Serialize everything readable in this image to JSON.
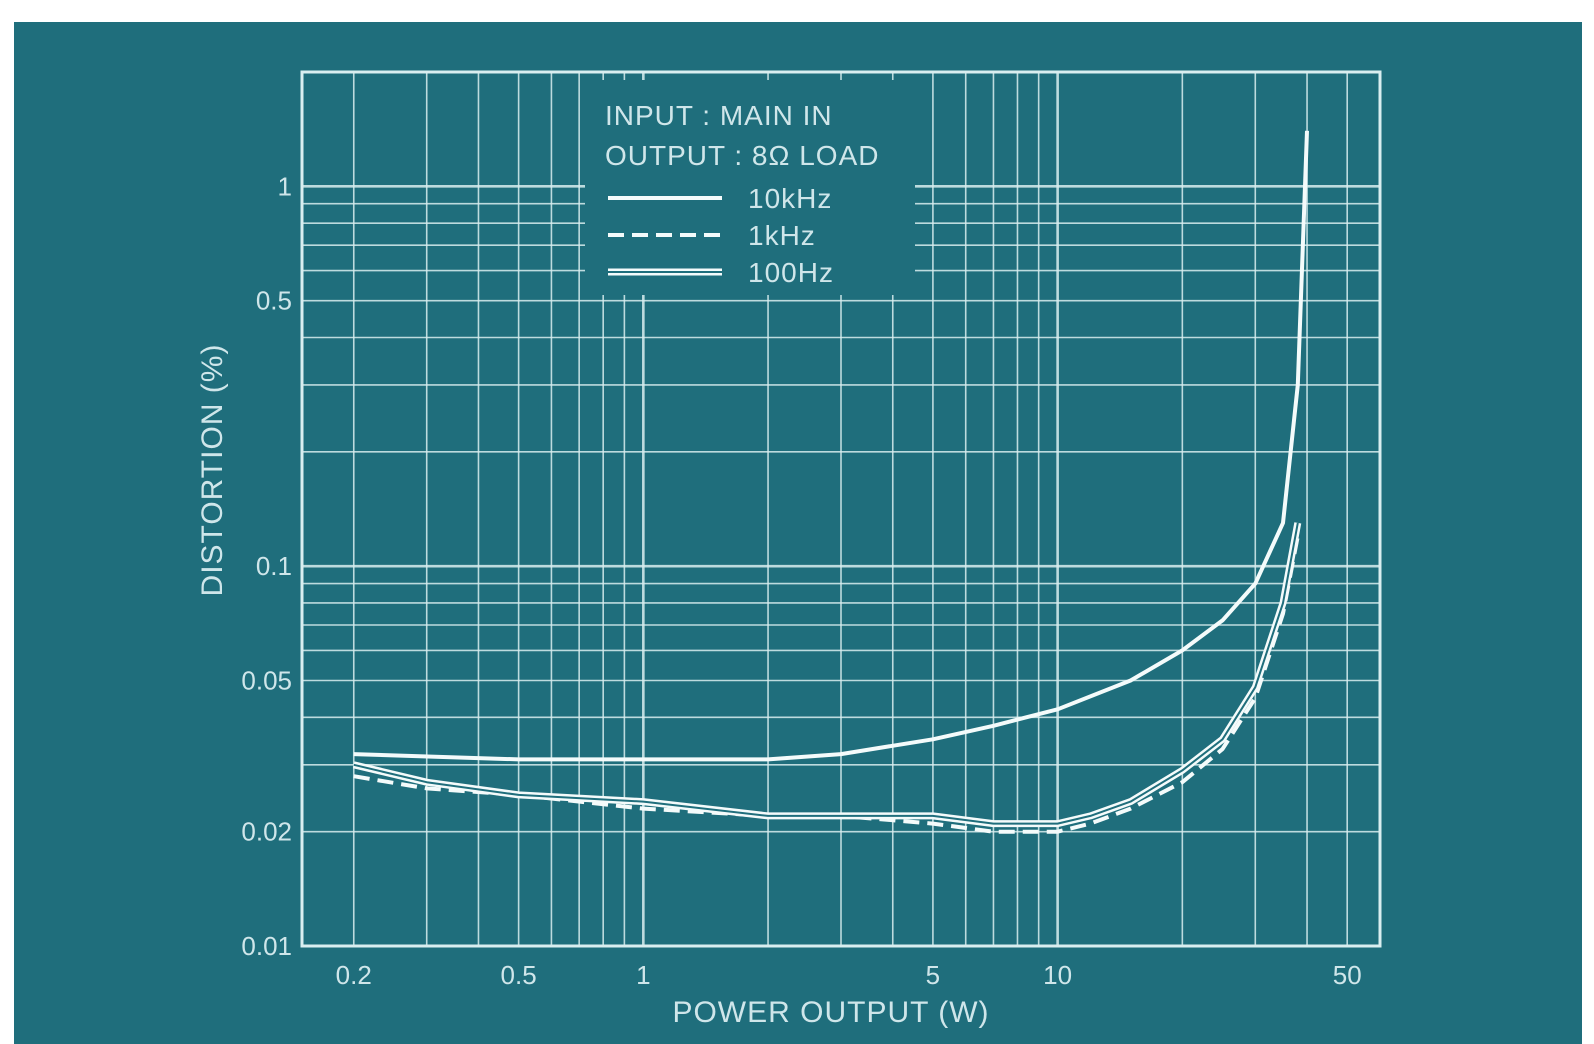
{
  "chart_data": {
    "type": "line",
    "title": "",
    "xlabel": "POWER OUTPUT (W)",
    "ylabel": "DISTORTION (%)",
    "x_scale": "log",
    "y_scale": "log",
    "xlim": [
      0.15,
      60
    ],
    "ylim": [
      0.01,
      2
    ],
    "x_ticks": [
      {
        "value": 0.2,
        "label": "0.2"
      },
      {
        "value": 0.5,
        "label": "0.5"
      },
      {
        "value": 1,
        "label": "1"
      },
      {
        "value": 5,
        "label": "5"
      },
      {
        "value": 10,
        "label": "10"
      },
      {
        "value": 50,
        "label": "50"
      }
    ],
    "y_ticks": [
      {
        "value": 0.01,
        "label": "0.01"
      },
      {
        "value": 0.02,
        "label": "0.02"
      },
      {
        "value": 0.05,
        "label": "0.05"
      },
      {
        "value": 0.1,
        "label": "0.1"
      },
      {
        "value": 0.5,
        "label": "0.5"
      },
      {
        "value": 1,
        "label": "1"
      }
    ],
    "grid": true,
    "legend": {
      "placement": "top-center",
      "header_lines": [
        "INPUT : MAIN IN",
        "OUTPUT : 8Ω LOAD"
      ],
      "entries": [
        {
          "label": "10kHz",
          "style": "solid"
        },
        {
          "label": "1kHz",
          "style": "dashed"
        },
        {
          "label": "100Hz",
          "style": "double"
        }
      ]
    },
    "series": [
      {
        "name": "10kHz",
        "style": "solid",
        "x": [
          0.2,
          0.5,
          1,
          2,
          3,
          5,
          7,
          10,
          15,
          20,
          25,
          30,
          35,
          38,
          40
        ],
        "y": [
          0.032,
          0.031,
          0.031,
          0.031,
          0.032,
          0.035,
          0.038,
          0.042,
          0.05,
          0.06,
          0.072,
          0.09,
          0.13,
          0.3,
          1.4
        ]
      },
      {
        "name": "1kHz",
        "style": "dashed",
        "x": [
          0.2,
          0.3,
          0.5,
          1,
          2,
          3,
          5,
          7,
          10,
          12,
          15,
          20,
          25,
          30,
          35,
          38
        ],
        "y": [
          0.028,
          0.026,
          0.025,
          0.023,
          0.022,
          0.022,
          0.021,
          0.02,
          0.02,
          0.021,
          0.023,
          0.027,
          0.033,
          0.045,
          0.075,
          0.12
        ]
      },
      {
        "name": "100Hz",
        "style": "double",
        "x": [
          0.2,
          0.3,
          0.5,
          1,
          2,
          3,
          5,
          7,
          10,
          12,
          15,
          20,
          25,
          30,
          35,
          38
        ],
        "y": [
          0.03,
          0.027,
          0.025,
          0.024,
          0.022,
          0.022,
          0.022,
          0.021,
          0.021,
          0.022,
          0.024,
          0.029,
          0.035,
          0.048,
          0.08,
          0.13
        ]
      }
    ]
  },
  "colors": {
    "background": "#1f6e7c",
    "grid": "#d9eef0",
    "curve": "#f4fbfb"
  }
}
